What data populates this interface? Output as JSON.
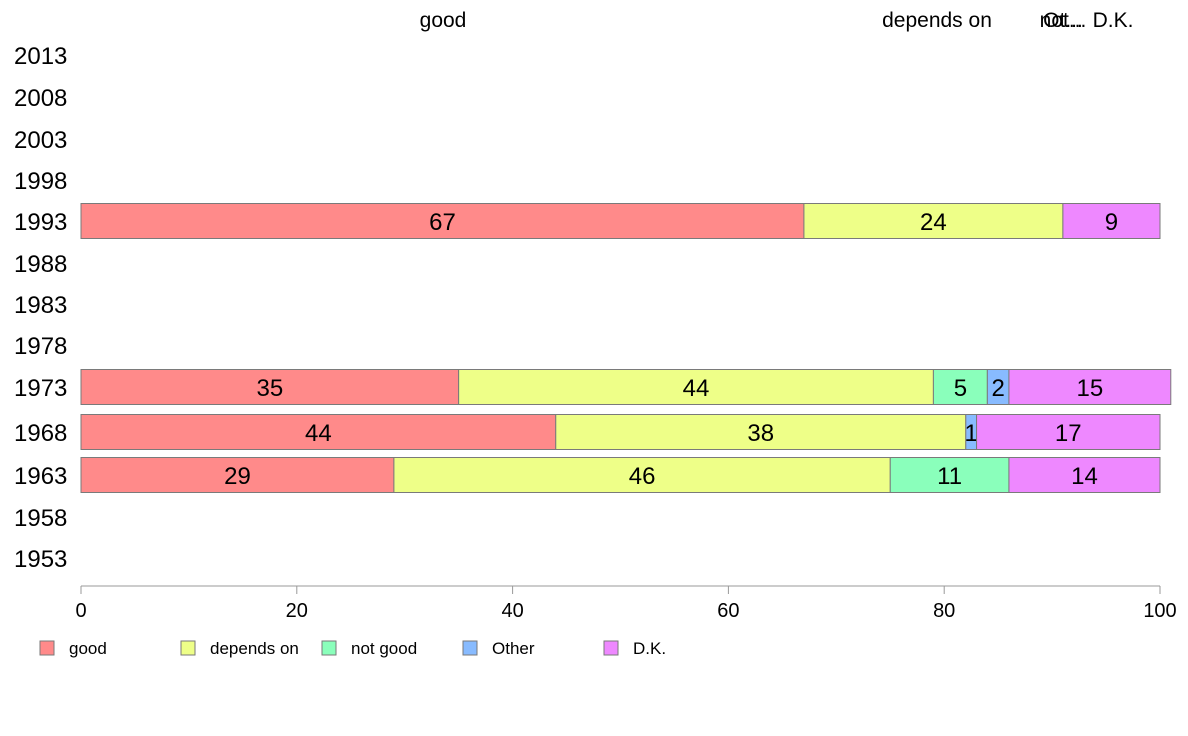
{
  "chart_data": {
    "type": "bar",
    "orientation": "horizontal",
    "stacked": true,
    "categories": [
      "2013",
      "2008",
      "2003",
      "1998",
      "1993",
      "1988",
      "1983",
      "1978",
      "1973",
      "1968",
      "1963",
      "1958",
      "1953"
    ],
    "series": [
      {
        "name": "good",
        "color": "#ff8a8a",
        "values": [
          null,
          null,
          null,
          null,
          67,
          null,
          null,
          null,
          35,
          44,
          29,
          null,
          null
        ]
      },
      {
        "name": "depends on",
        "color": "#eeff88",
        "values": [
          null,
          null,
          null,
          null,
          24,
          null,
          null,
          null,
          44,
          38,
          46,
          null,
          null
        ]
      },
      {
        "name": "not good",
        "color": "#8affbb",
        "values": [
          null,
          null,
          null,
          null,
          0,
          null,
          null,
          null,
          5,
          0,
          11,
          null,
          null
        ]
      },
      {
        "name": "Other",
        "color": "#88bbff",
        "values": [
          null,
          null,
          null,
          null,
          0,
          null,
          null,
          null,
          2,
          1,
          0,
          null,
          null
        ]
      },
      {
        "name": "D.K.",
        "color": "#ee88ff",
        "values": [
          null,
          null,
          null,
          null,
          9,
          null,
          null,
          null,
          15,
          17,
          14,
          null,
          null
        ]
      }
    ],
    "xlim": [
      0,
      100
    ],
    "xticks": [
      0,
      20,
      40,
      60,
      80,
      100
    ],
    "top_labels": [
      "good",
      "depends on",
      "not...",
      "Ot...",
      "D.K."
    ],
    "legend": {
      "position": "bottom-left",
      "items": [
        "good",
        "depends on",
        "not good",
        "Other",
        "D.K."
      ]
    },
    "grid": false,
    "xlabel": "",
    "ylabel": "",
    "title": ""
  }
}
